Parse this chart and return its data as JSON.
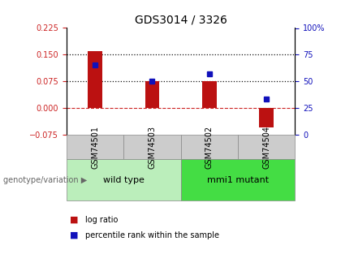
{
  "title": "GDS3014 / 3326",
  "samples": [
    "GSM74501",
    "GSM74503",
    "GSM74502",
    "GSM74504"
  ],
  "log_ratios": [
    0.16,
    0.075,
    0.075,
    -0.055
  ],
  "percentile_ranks": [
    65,
    50,
    57,
    33
  ],
  "left_ylim": [
    -0.075,
    0.225
  ],
  "left_yticks": [
    -0.075,
    0,
    0.075,
    0.15,
    0.225
  ],
  "right_ylim": [
    0,
    100
  ],
  "right_yticks": [
    0,
    25,
    50,
    75,
    100
  ],
  "right_yticklabels": [
    "0",
    "25",
    "50",
    "75",
    "100%"
  ],
  "hlines": [
    0.075,
    0.15
  ],
  "bar_color": "#bb1111",
  "dot_color": "#1111bb",
  "zero_line_color": "#cc2222",
  "hline_color": "#111111",
  "groups": [
    {
      "label": "wild type",
      "indices": [
        0,
        1
      ],
      "color": "#bbeebb"
    },
    {
      "label": "mmi1 mutant",
      "indices": [
        2,
        3
      ],
      "color": "#44dd44"
    }
  ],
  "genotype_label": "genotype/variation",
  "legend_items": [
    {
      "color": "#bb1111",
      "label": "log ratio"
    },
    {
      "color": "#1111bb",
      "label": "percentile rank within the sample"
    }
  ],
  "bar_width": 0.25
}
